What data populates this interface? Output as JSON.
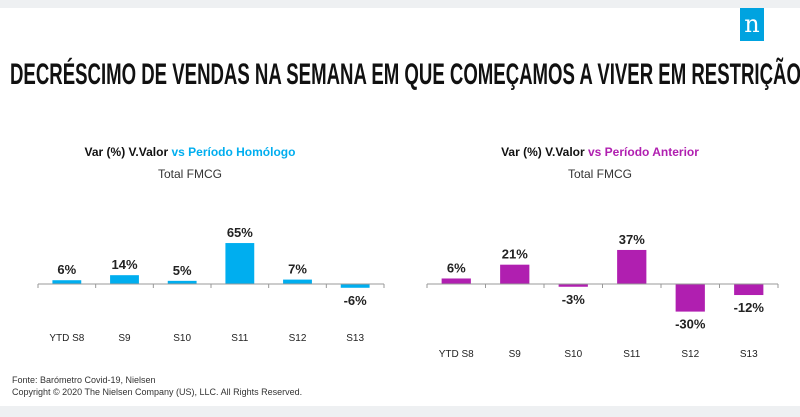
{
  "logo_text": "n",
  "title": "DECRÉSCIMO DE VENDAS NA SEMANA EM QUE COMEÇAMOS A VIVER EM RESTRIÇÃO",
  "footer": {
    "source": "Fonte: Barómetro Covid-19, Nielsen",
    "copyright": "Copyright © 2020 The Nielsen Company (US), LLC. All Rights Reserved."
  },
  "chart_data": [
    {
      "type": "bar",
      "title_prefix": "Var (%) V.Valor ",
      "title_highlight": "vs Período Homólogo",
      "subtitle": "Total FMCG",
      "color": "#00aeef",
      "categories": [
        "YTD S8",
        "S9",
        "S10",
        "S11",
        "S12",
        "S13"
      ],
      "values": [
        6,
        14,
        5,
        65,
        7,
        -6
      ],
      "labels": [
        "6%",
        "14%",
        "5%",
        "65%",
        "7%",
        "-6%"
      ],
      "ylim": [
        -10,
        70
      ]
    },
    {
      "type": "bar",
      "title_prefix": "Var (%) V.Valor ",
      "title_highlight": "vs Período Anterior",
      "subtitle": "Total FMCG",
      "color": "#b01fb0",
      "categories": [
        "YTD S8",
        "S9",
        "S10",
        "S11",
        "S12",
        "S13"
      ],
      "values": [
        6,
        21,
        -3,
        37,
        -30,
        -12
      ],
      "labels": [
        "6%",
        "21%",
        "-3%",
        "37%",
        "-30%",
        "-12%"
      ],
      "ylim": [
        -35,
        40
      ]
    }
  ]
}
